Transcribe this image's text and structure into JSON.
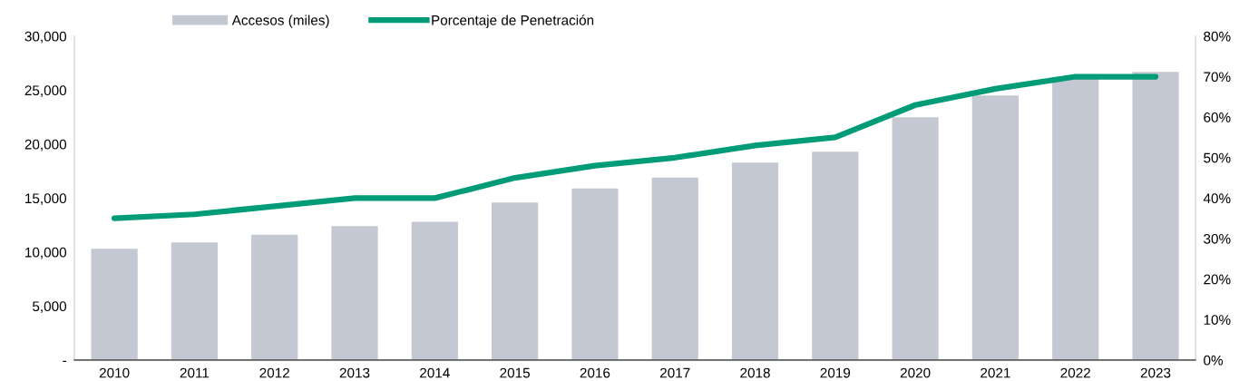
{
  "chart_data": {
    "type": "bar",
    "categories": [
      "2010",
      "2011",
      "2012",
      "2013",
      "2014",
      "2015",
      "2016",
      "2017",
      "2018",
      "2019",
      "2020",
      "2021",
      "2022",
      "2023"
    ],
    "series": [
      {
        "name": "Accesos (miles)",
        "color": "#c4c8d3",
        "values": [
          10300,
          10900,
          11600,
          12400,
          12800,
          14600,
          15900,
          16900,
          18300,
          19300,
          22500,
          24500,
          26200,
          26700
        ]
      },
      {
        "name": "Porcentaje de Penetración",
        "type": "line",
        "axis": "y2",
        "color": "#009b77",
        "values": [
          35,
          36,
          38,
          40,
          40,
          45,
          48,
          50,
          53,
          55,
          63,
          67,
          70,
          70
        ]
      }
    ],
    "ylim": [
      0,
      30000
    ],
    "yticks": [
      {
        "value": 0,
        "label": "-"
      },
      {
        "value": 5000,
        "label": "5,000"
      },
      {
        "value": 10000,
        "label": "10,000"
      },
      {
        "value": 15000,
        "label": "15,000"
      },
      {
        "value": 20000,
        "label": "20,000"
      },
      {
        "value": 25000,
        "label": "25,000"
      },
      {
        "value": 30000,
        "label": "30,000"
      }
    ],
    "y2lim": [
      0,
      80
    ],
    "y2ticks": [
      {
        "value": 0,
        "label": "0%"
      },
      {
        "value": 10,
        "label": "10%"
      },
      {
        "value": 20,
        "label": "20%"
      },
      {
        "value": 30,
        "label": "30%"
      },
      {
        "value": 40,
        "label": "40%"
      },
      {
        "value": 50,
        "label": "50%"
      },
      {
        "value": 60,
        "label": "60%"
      },
      {
        "value": 70,
        "label": "70%"
      },
      {
        "value": 80,
        "label": "80%"
      }
    ],
    "grid": false,
    "legend": "top left",
    "marker": "none",
    "line_style": "solid"
  }
}
